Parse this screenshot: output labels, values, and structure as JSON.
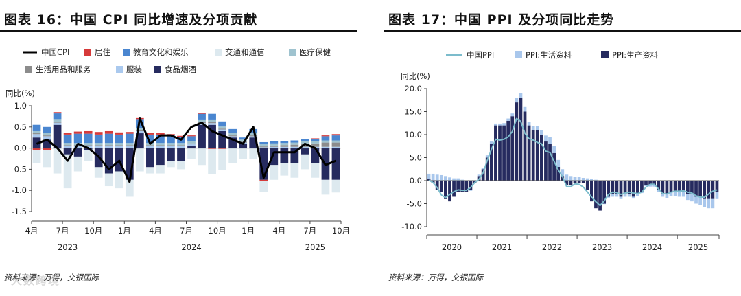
{
  "left": {
    "title": "图表 16：中国 CPI 同比增速及分项贡献",
    "source": "资料来源：万得，交银国际"
  },
  "right": {
    "title": "图表 17：中国 PPI 及分项同比走势",
    "source": "资料来源：万得，交银国际"
  },
  "watermark": "大数跨境",
  "colors": {
    "cpi_line": "#000000",
    "housing": "#d63a3a",
    "education": "#4a86d0",
    "transport": "#dde9ef",
    "medical": "#9fc3cf",
    "daily": "#8c8c8c",
    "clothing": "#aac9ee",
    "food": "#262b5f",
    "ppi_line": "#7cbccc",
    "ppi_living": "#a9c7ec",
    "ppi_production": "#262b5f"
  },
  "chart_data": [
    {
      "type": "bar",
      "title": "图表 16：中国 CPI 同比增速及分项贡献",
      "ylabel": "同比(%)",
      "ylim": [
        -1.5,
        1.0
      ],
      "yticks": [
        1.0,
        0.5,
        0.0,
        -0.5,
        -1.0,
        -1.5
      ],
      "ytick_labels": [
        "1.0",
        "0.5",
        "0.0",
        "-0.5",
        "-1.0",
        "-1.5"
      ],
      "xtick_labels": [
        "4月",
        "7月",
        "10月",
        "1月",
        "4月",
        "7月",
        "10月",
        "1月",
        "4月",
        "7月",
        "10月"
      ],
      "xtick_positions": [
        0,
        3,
        6,
        9,
        12,
        15,
        18,
        21,
        24,
        27,
        30
      ],
      "year_labels": [
        {
          "label": "2023",
          "at": 3
        },
        {
          "label": "2024",
          "at": 15
        },
        {
          "label": "2025",
          "at": 27
        }
      ],
      "periods": [
        "2023-04",
        "2023-05",
        "2023-06",
        "2023-07",
        "2023-08",
        "2023-09",
        "2023-10",
        "2023-11",
        "2023-12",
        "2024-01",
        "2024-02",
        "2024-03",
        "2024-04",
        "2024-05",
        "2024-06",
        "2024-07",
        "2024-08",
        "2024-09",
        "2024-10",
        "2024-11",
        "2024-12",
        "2025-01",
        "2025-02",
        "2025-03",
        "2025-04",
        "2025-05",
        "2025-06",
        "2025-07",
        "2025-08",
        "2025-09"
      ],
      "legend": [
        {
          "key": "cpi",
          "label": "中国CPI",
          "kind": "line"
        },
        {
          "key": "housing",
          "label": "居住",
          "kind": "bar"
        },
        {
          "key": "education",
          "label": "教育文化和娱乐",
          "kind": "bar"
        },
        {
          "key": "transport",
          "label": "交通和通信",
          "kind": "bar"
        },
        {
          "key": "medical",
          "label": "医疗保健",
          "kind": "bar"
        },
        {
          "key": "daily",
          "label": "生活用品和服务",
          "kind": "bar"
        },
        {
          "key": "clothing",
          "label": "服装",
          "kind": "bar"
        },
        {
          "key": "food",
          "label": "食品烟酒",
          "kind": "bar"
        }
      ],
      "series": [
        {
          "key": "food",
          "name": "食品烟酒",
          "values": [
            0.25,
            0.2,
            0.55,
            -0.15,
            -0.2,
            -0.05,
            -0.45,
            -0.6,
            -0.55,
            -0.75,
            0.35,
            -0.45,
            -0.4,
            -0.3,
            -0.3,
            0.05,
            0.55,
            0.55,
            0.4,
            0.25,
            0.1,
            0.25,
            -0.75,
            -0.4,
            -0.35,
            -0.35,
            -0.15,
            -0.35,
            -0.75,
            -0.75
          ]
        },
        {
          "key": "clothing",
          "name": "服装",
          "values": [
            0.08,
            0.08,
            0.05,
            0.05,
            0.05,
            0.05,
            0.05,
            0.05,
            0.05,
            0.05,
            0.05,
            0.05,
            0.05,
            0.05,
            0.05,
            0.04,
            0.04,
            0.04,
            0.04,
            0.03,
            0.03,
            0.03,
            0.02,
            0.03,
            0.03,
            0.03,
            0.03,
            0.03,
            0.03,
            0.03
          ]
        },
        {
          "key": "daily",
          "name": "生活用品和服务",
          "values": [
            0.02,
            0.02,
            0.02,
            0.02,
            0.02,
            0.02,
            0.02,
            0.02,
            0.02,
            0.02,
            0.02,
            0.02,
            0.02,
            0.02,
            0.02,
            0.02,
            0.02,
            0.02,
            0.02,
            0.02,
            0.02,
            0.02,
            0.02,
            0.03,
            0.04,
            0.05,
            0.08,
            0.08,
            0.1,
            0.1
          ]
        },
        {
          "key": "medical",
          "name": "医疗保健",
          "values": [
            0.05,
            0.05,
            0.05,
            0.05,
            0.05,
            0.05,
            0.05,
            0.05,
            0.05,
            0.05,
            0.05,
            0.05,
            0.05,
            0.05,
            0.05,
            0.05,
            0.05,
            0.05,
            0.05,
            0.05,
            0.05,
            0.05,
            0.05,
            0.05,
            0.05,
            0.05,
            0.05,
            0.05,
            0.05,
            0.05
          ]
        },
        {
          "key": "education",
          "name": "教育文化和娱乐",
          "values": [
            0.15,
            0.15,
            0.15,
            0.2,
            0.22,
            0.22,
            0.2,
            0.22,
            0.2,
            0.22,
            0.2,
            0.2,
            0.2,
            0.18,
            0.15,
            0.12,
            0.15,
            0.15,
            0.12,
            0.1,
            0.05,
            0.1,
            0.05,
            0.05,
            0.05,
            0.05,
            0.05,
            0.05,
            0.1,
            0.12
          ]
        },
        {
          "key": "housing",
          "name": "居住",
          "values": [
            -0.05,
            -0.05,
            0.03,
            0.04,
            0.05,
            0.06,
            0.06,
            0.06,
            0.05,
            0.04,
            0.04,
            0.04,
            0.04,
            0.03,
            0.02,
            0.02,
            0.02,
            -0.02,
            -0.02,
            0.0,
            0.0,
            0.0,
            -0.03,
            0.0,
            0.0,
            0.0,
            0.0,
            0.02,
            0.02,
            0.03
          ]
        },
        {
          "key": "transport",
          "name": "交通和通信",
          "values": [
            -0.3,
            -0.4,
            -0.6,
            -0.8,
            -0.35,
            -0.25,
            -0.25,
            -0.3,
            -0.4,
            -0.4,
            -0.55,
            -0.15,
            -0.2,
            -0.15,
            -0.2,
            -0.25,
            -0.4,
            -0.6,
            -0.5,
            -0.35,
            -0.25,
            -0.25,
            -0.25,
            -0.35,
            -0.3,
            -0.35,
            -0.35,
            -0.35,
            -0.35,
            -0.3
          ]
        }
      ],
      "line": {
        "key": "cpi",
        "name": "中国CPI",
        "values": [
          0.1,
          0.2,
          0.0,
          -0.3,
          0.1,
          0.0,
          -0.2,
          -0.5,
          -0.3,
          -0.8,
          0.7,
          0.1,
          0.3,
          0.3,
          0.2,
          0.5,
          0.6,
          0.4,
          0.3,
          0.2,
          0.1,
          0.5,
          -0.7,
          -0.1,
          -0.1,
          -0.1,
          0.1,
          0.0,
          -0.4,
          -0.3
        ]
      }
    },
    {
      "type": "bar",
      "title": "图表 17：中国 PPI 及分项同比走势",
      "ylabel": "同比(%)",
      "ylim": [
        -10.0,
        20.0
      ],
      "yticks": [
        20.0,
        15.0,
        10.0,
        5.0,
        0.0,
        -5.0,
        -10.0
      ],
      "ytick_labels": [
        "20.0",
        "15.0",
        "10.0",
        "5.0",
        "0.0",
        "-5.0",
        "-10.0"
      ],
      "xtick_labels": [
        "2020",
        "2021",
        "2022",
        "2023",
        "2024",
        "2025"
      ],
      "year_start_index": [
        0,
        12,
        24,
        36,
        48,
        60
      ],
      "legend": [
        {
          "key": "ppi",
          "label": "中国PPI",
          "kind": "line"
        },
        {
          "key": "living",
          "label": "PPI:生活资料",
          "kind": "bar"
        },
        {
          "key": "production",
          "label": "PPI:生产资料",
          "kind": "bar"
        }
      ],
      "series": [
        {
          "key": "production",
          "name": "PPI:生产资料",
          "values": [
            0.3,
            -0.5,
            -2.0,
            -2.5,
            -4.0,
            -4.5,
            -3.5,
            -2.5,
            -2.5,
            -2.5,
            -2.0,
            -0.5,
            1.0,
            2.5,
            5.0,
            8.0,
            12.0,
            12.0,
            12.0,
            13.0,
            14.0,
            17.0,
            18.0,
            15.0,
            12.0,
            11.0,
            11.0,
            10.0,
            8.5,
            8.0,
            6.0,
            3.0,
            1.0,
            -1.0,
            -1.0,
            -0.5,
            -0.5,
            -0.5,
            -2.0,
            -4.5,
            -6.0,
            -6.5,
            -5.0,
            -3.5,
            -3.0,
            -3.0,
            -3.5,
            -3.0,
            -3.0,
            -3.5,
            -3.0,
            -2.5,
            -1.0,
            -1.0,
            -1.0,
            -2.0,
            -3.0,
            -3.0,
            -2.5,
            -2.5,
            -2.5,
            -2.5,
            -3.0,
            -3.0,
            -3.5,
            -3.5,
            -4.0,
            -4.0,
            -4.0,
            -2.5
          ]
        },
        {
          "key": "living",
          "name": "PPI:生活资料",
          "values": [
            1.2,
            1.5,
            1.3,
            1.2,
            1.0,
            0.7,
            0.5,
            0.5,
            0.2,
            0.0,
            -0.2,
            0.0,
            0.3,
            0.3,
            0.5,
            0.5,
            0.4,
            0.4,
            0.5,
            0.5,
            0.6,
            1.0,
            1.0,
            1.0,
            0.8,
            0.8,
            0.9,
            1.0,
            1.3,
            1.5,
            1.5,
            1.5,
            1.5,
            1.3,
            1.0,
            0.8,
            0.8,
            0.6,
            0.5,
            0.4,
            0.2,
            0.0,
            -0.1,
            -0.2,
            -0.5,
            -0.5,
            -0.5,
            -0.5,
            -0.5,
            -0.4,
            -0.3,
            -0.2,
            -0.2,
            -0.3,
            -0.3,
            -0.5,
            -0.5,
            -0.8,
            -0.8,
            -0.8,
            -1.0,
            -1.0,
            -1.2,
            -1.5,
            -1.5,
            -1.8,
            -1.8,
            -2.0,
            -2.0,
            -1.5
          ]
        }
      ],
      "line": {
        "key": "ppi",
        "name": "中国PPI",
        "values": [
          0.1,
          -0.4,
          -1.5,
          -3.1,
          -3.7,
          -3.0,
          -2.4,
          -2.0,
          -2.1,
          -2.1,
          -1.5,
          -0.4,
          0.3,
          1.7,
          4.4,
          6.8,
          9.0,
          8.8,
          9.0,
          9.5,
          10.7,
          13.5,
          12.9,
          10.3,
          9.1,
          8.8,
          8.3,
          8.0,
          6.4,
          6.1,
          4.2,
          2.3,
          0.9,
          -1.3,
          -1.3,
          -0.7,
          -0.8,
          -1.4,
          -2.5,
          -3.6,
          -4.6,
          -5.4,
          -4.4,
          -3.0,
          -2.5,
          -2.6,
          -3.0,
          -2.7,
          -2.5,
          -2.7,
          -2.8,
          -2.5,
          -1.4,
          -0.8,
          -0.8,
          -1.8,
          -2.8,
          -2.9,
          -2.5,
          -2.3,
          -2.3,
          -2.2,
          -2.5,
          -2.7,
          -3.3,
          -3.6,
          -3.6,
          -2.9,
          -2.3,
          -2.0
        ]
      }
    }
  ]
}
